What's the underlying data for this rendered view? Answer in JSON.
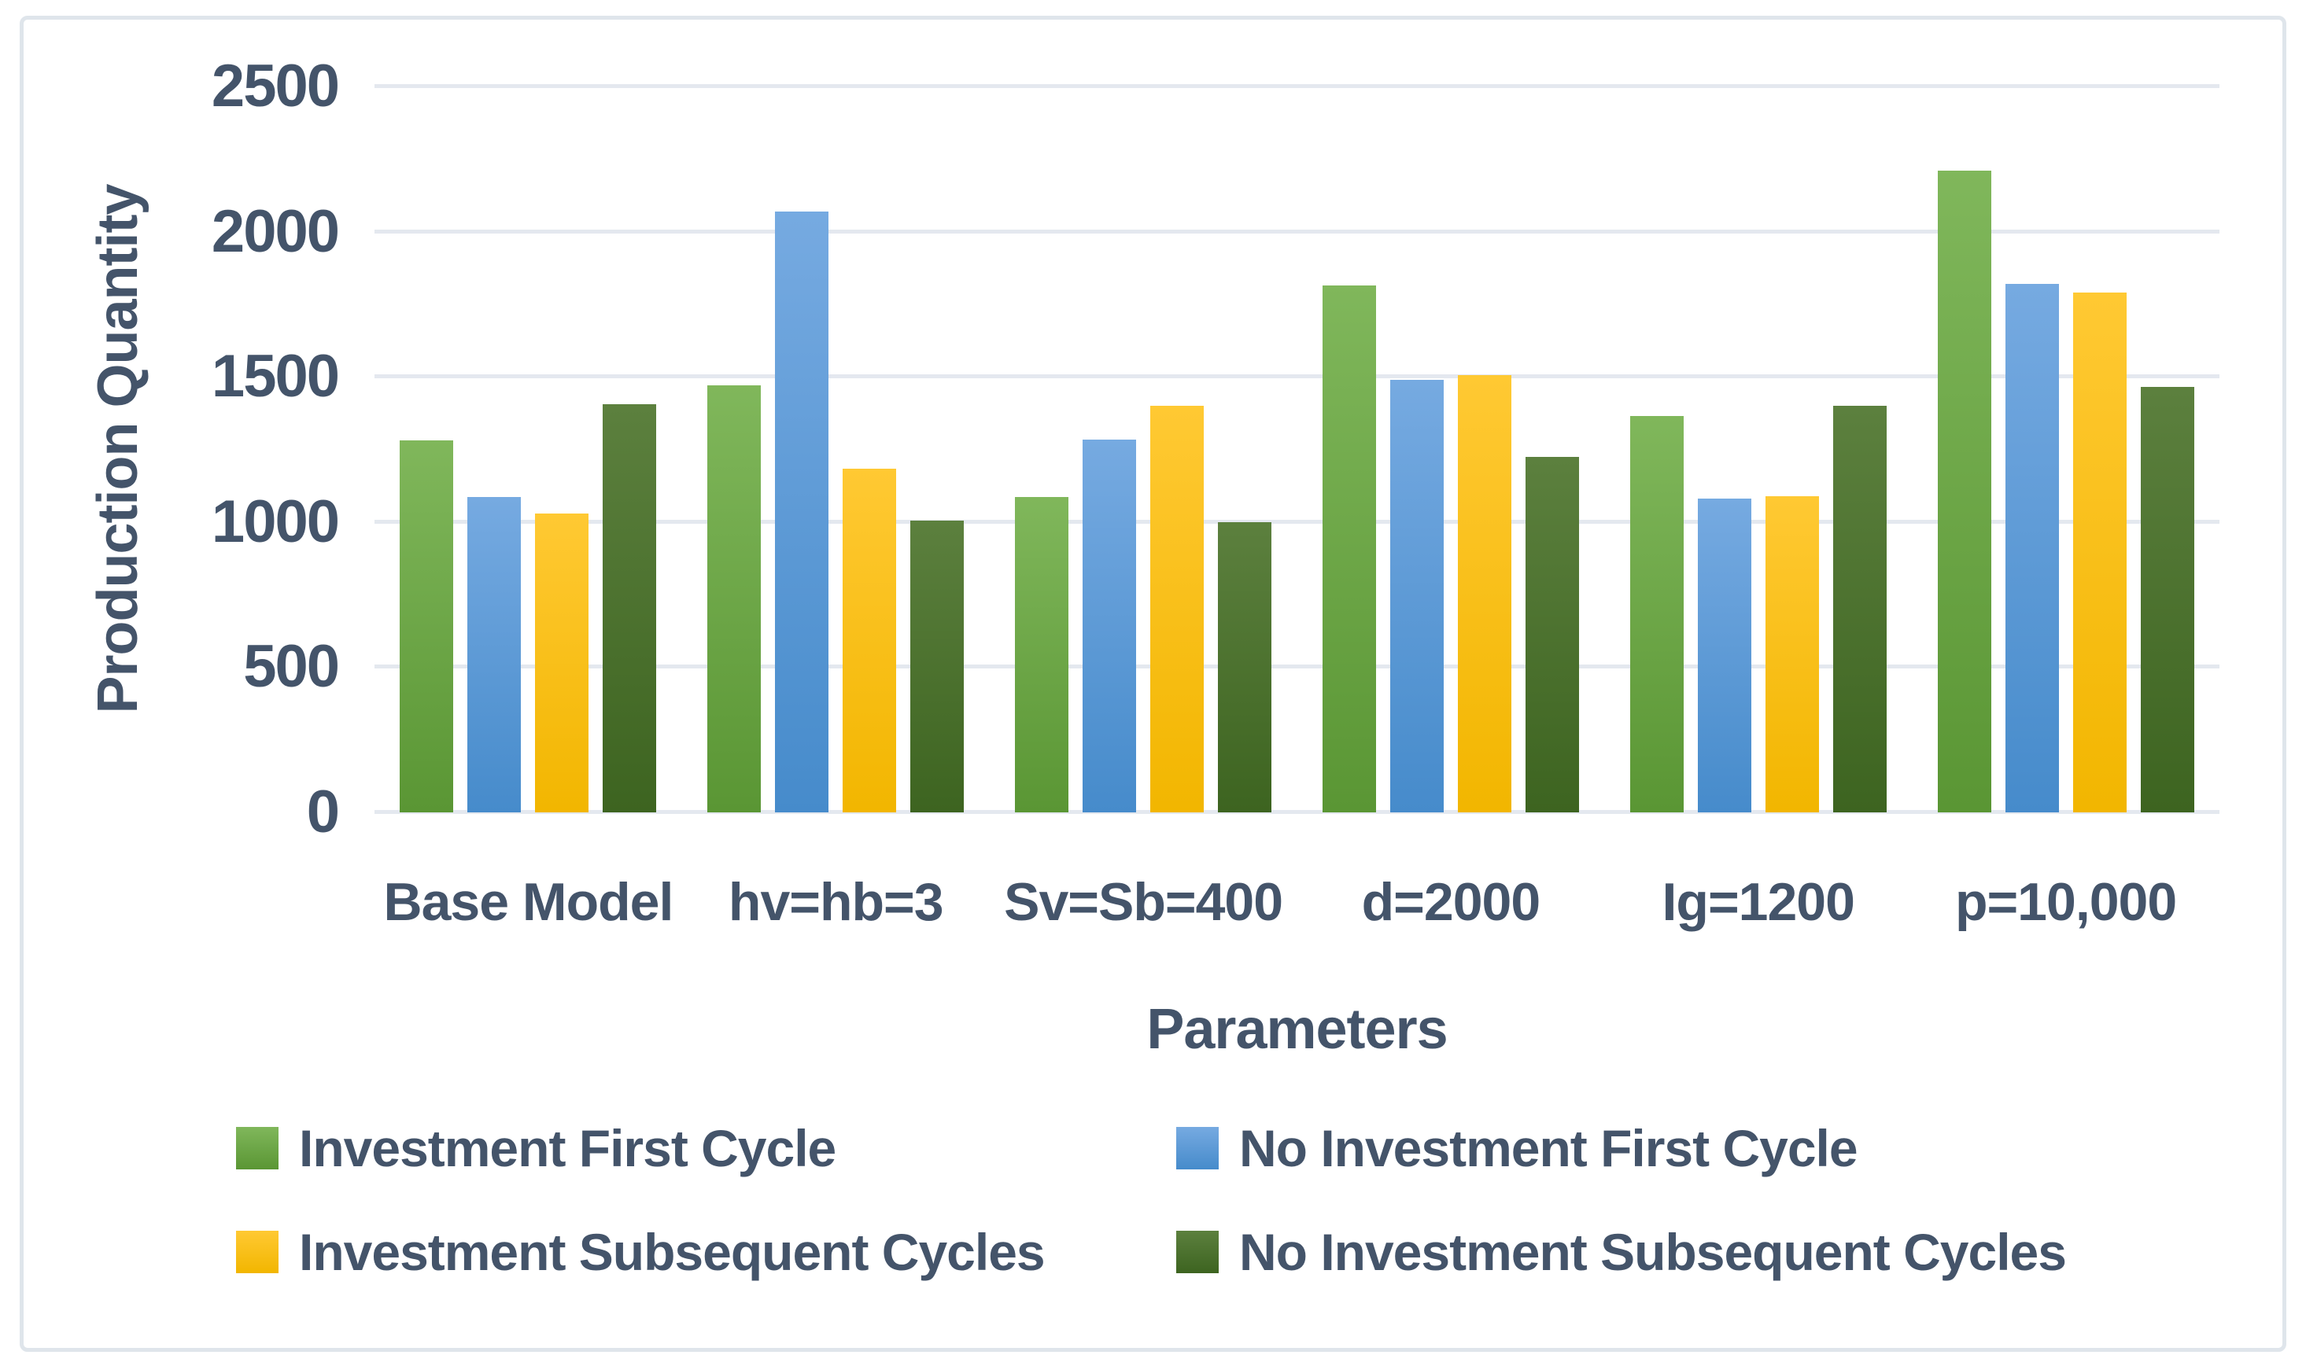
{
  "chart_data": {
    "type": "bar",
    "title": "",
    "ylabel": "Production Quantity",
    "xlabel": "Parameters",
    "ylim": [
      0,
      2500
    ],
    "yticks": [
      0,
      500,
      1000,
      1500,
      2000,
      2500
    ],
    "grid": "horizontal gridlines every 500, light gray",
    "legend_position": "bottom-left, 2 columns x 2 rows",
    "categories": [
      "Base Model",
      "hv=hb=3",
      "Sv=Sb=400",
      "d=2000",
      "Ig=1200",
      "p=10,000"
    ],
    "series": [
      {
        "name": "Investment First Cycle",
        "color": "#70AD47",
        "color_top": "#80B75B",
        "color_bottom": "#5A9634",
        "values": [
          1280,
          1470,
          1085,
          1815,
          1365,
          2210
        ]
      },
      {
        "name": "No Investment First Cycle",
        "color": "#5B9BD5",
        "color_top": "#76AAE1",
        "color_bottom": "#468BCB",
        "values": [
          1085,
          2070,
          1285,
          1490,
          1080,
          1820
        ]
      },
      {
        "name": "Investment Subsequent Cycles",
        "color": "#FFC000",
        "color_top": "#FFC933",
        "color_bottom": "#F2B600",
        "values": [
          1030,
          1185,
          1400,
          1505,
          1090,
          1790
        ]
      },
      {
        "name": "No Investment Subsequent Cycles",
        "color": "#4E7031",
        "color_top": "#5C803E",
        "color_bottom": "#3D6420",
        "values": [
          1405,
          1005,
          1000,
          1225,
          1400,
          1465
        ]
      }
    ],
    "colors": {
      "text": "#44546A",
      "gridline": "#E4E8EF",
      "border": "#DFE5EB",
      "background": "#FFFFFF"
    }
  }
}
